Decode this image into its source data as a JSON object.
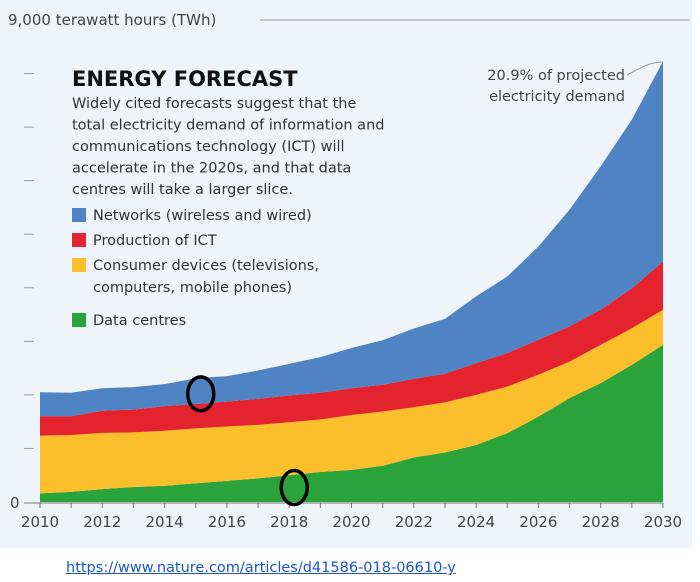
{
  "chart_data": {
    "type": "area",
    "stacked": true,
    "title": "ENERGY FORECAST",
    "subtitle_lines": [
      "Widely cited forecasts suggest that the",
      "total electricity demand of information and",
      "communications technology (ICT) will",
      "accelerate in the 2020s, and that data",
      "centres will take a larger slice."
    ],
    "ylabel": "9,000 terawatt hours (TWh)",
    "ylim": [
      0,
      9000
    ],
    "y_tick_labels": [
      "0"
    ],
    "y_minor_ticks_every": 1000,
    "xlim": [
      2010,
      2030
    ],
    "x_tick_labels": [
      "2010",
      "2012",
      "2014",
      "2016",
      "2018",
      "2020",
      "2022",
      "2024",
      "2026",
      "2028",
      "2030"
    ],
    "x": [
      2010,
      2011,
      2012,
      2013,
      2014,
      2015,
      2016,
      2017,
      2018,
      2019,
      2020,
      2021,
      2022,
      2023,
      2024,
      2025,
      2026,
      2027,
      2028,
      2029,
      2030
    ],
    "series": [
      {
        "name": "Data centres",
        "color": "#29a33a",
        "values": [
          160,
          190,
          240,
          280,
          300,
          350,
          395,
          440,
          500,
          560,
          600,
          675,
          830,
          925,
          1065,
          1285,
          1595,
          1940,
          2220,
          2560,
          2935
        ]
      },
      {
        "name": "Consumer devices (televisions, computers, mobile phones)",
        "color": "#fcbf2c",
        "values": [
          1080,
          1060,
          1050,
          1020,
          1030,
          1025,
          1015,
          1000,
          990,
          980,
          1025,
          1015,
          940,
          935,
          935,
          870,
          780,
          680,
          715,
          685,
          655
        ]
      },
      {
        "name": "Production of ICT",
        "color": "#e5232e",
        "values": [
          360,
          350,
          415,
          425,
          460,
          455,
          465,
          485,
          500,
          500,
          500,
          500,
          530,
          535,
          590,
          625,
          655,
          660,
          655,
          745,
          900
        ]
      },
      {
        "name": "Networks (wireless and wired)",
        "color": "#4f84c4",
        "values": [
          450,
          440,
          420,
          420,
          410,
          480,
          475,
          530,
          590,
          665,
          750,
          830,
          940,
          1025,
          1250,
          1430,
          1740,
          2180,
          2680,
          3150,
          3740
        ]
      }
    ],
    "legend": {
      "placement": "top-left",
      "items": [
        {
          "lines": [
            "Networks (wireless and wired)"
          ],
          "color": "#4f84c4"
        },
        {
          "lines": [
            "Production of ICT"
          ],
          "color": "#e5232e"
        },
        {
          "lines": [
            "Consumer devices (televisions,",
            "computers, mobile phones)"
          ],
          "color": "#fcbf2c"
        },
        {
          "lines": [
            "Data centres"
          ],
          "color": "#29a33a"
        }
      ]
    },
    "annotation": {
      "lines": [
        "20.9% of projected",
        "electricity demand"
      ],
      "x": 2030
    },
    "markup_circles": [
      {
        "x": 2015,
        "y": 2020
      },
      {
        "x": 2018,
        "y": 270
      }
    ],
    "grid": false,
    "background": "#eff3fa"
  },
  "source_link": "https://www.nature.com/articles/d41586-018-06610-y"
}
